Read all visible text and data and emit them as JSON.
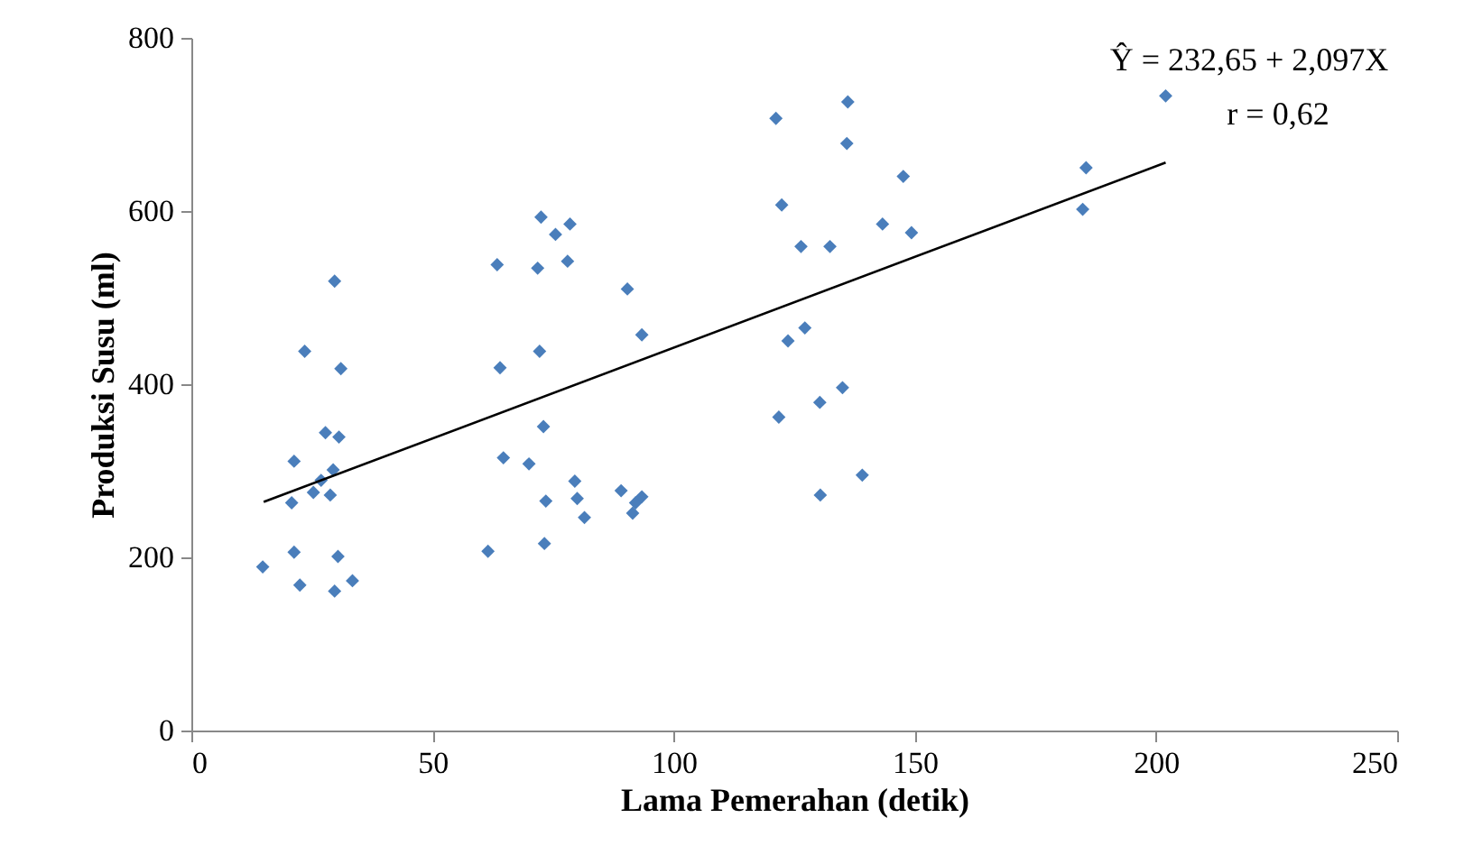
{
  "chart_data": {
    "type": "scatter",
    "xlabel": "Lama Pemerahan (detik)",
    "ylabel": "Produksi Susu (ml)",
    "annotations": [
      "Ŷ = 232,65 + 2,097X",
      "r = 0,62"
    ],
    "xlim": [
      0,
      250
    ],
    "xticks": [
      0,
      50,
      100,
      150,
      200,
      250
    ],
    "ylim": [
      0,
      800
    ],
    "yticks": [
      0,
      200,
      400,
      600,
      800
    ],
    "grid": false,
    "series": [
      {
        "marker": "diamond",
        "color": "#4a7ebb",
        "x": [
          14.8,
          21.3,
          22.5,
          29.7,
          30.4,
          33.4,
          20.8,
          21.3,
          25.3,
          26.9,
          28.8,
          29.4,
          27.8,
          30.6,
          23.5,
          31,
          29.7,
          61.5,
          73.2,
          64.7,
          70,
          73.5,
          79.5,
          80,
          81.5,
          89.1,
          91.5,
          92.1,
          93.4,
          73,
          64,
          72.2,
          93.4,
          90.4,
          63.4,
          71.8,
          78,
          72.5,
          75.5,
          78.5,
          121.2,
          136.1,
          135.9,
          147.6,
          122.4,
          143.3,
          149.3,
          126.4,
          132.4,
          123.7,
          127.2,
          121.8,
          130.3,
          135,
          130.4,
          139.1,
          185.5,
          184.8,
          202
        ],
        "values": [
          189,
          206,
          168,
          161,
          201,
          173,
          263,
          311,
          275,
          289,
          272,
          301,
          344,
          339,
          438,
          418,
          519,
          207,
          216,
          315,
          308,
          265,
          288,
          268,
          246,
          277,
          251,
          263,
          270,
          351,
          419,
          438,
          457,
          510,
          538,
          534,
          542,
          593,
          573,
          585,
          707,
          726,
          678,
          640,
          607,
          585,
          575,
          559,
          559,
          450,
          465,
          362,
          379,
          396,
          272,
          295,
          650,
          602,
          733
        ]
      },
      {
        "type": "line",
        "marker": "none",
        "color": "#000000",
        "line_style": "solid",
        "x": [
          15,
          202
        ],
        "values": [
          264,
          656
        ]
      }
    ]
  }
}
